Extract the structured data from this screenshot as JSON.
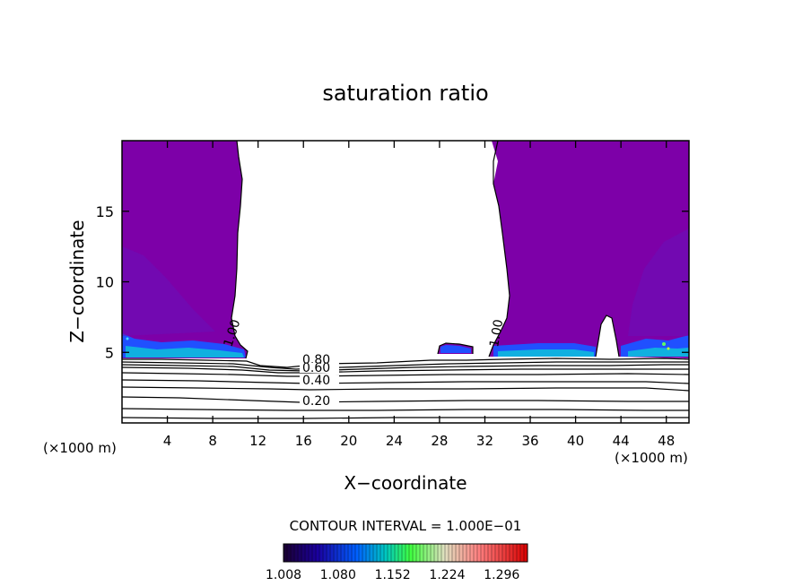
{
  "chart_data": {
    "type": "contour",
    "title": "saturation ratio",
    "xlabel": "X−coordinate",
    "ylabel": "Z−coordinate",
    "x_unit_left": "(×1000 m)",
    "x_unit_right": "(×1000 m)",
    "xlim": [
      0,
      50
    ],
    "ylim": [
      0,
      20
    ],
    "x_ticks": [
      4,
      8,
      12,
      16,
      20,
      24,
      28,
      32,
      36,
      40,
      44,
      48
    ],
    "y_ticks": [
      5,
      10,
      15
    ],
    "contour_interval_text": "CONTOUR INTERVAL = 1.000E−01",
    "contour_labels": [
      {
        "text": "0.80",
        "x": 17,
        "z": 4.1
      },
      {
        "text": "0.60",
        "x": 17,
        "z": 3.7
      },
      {
        "text": "0.40",
        "x": 17,
        "z": 3.0
      },
      {
        "text": "0.20",
        "x": 17,
        "z": 1.6
      },
      {
        "text": "1.00",
        "x": 9.6,
        "z": 6.4
      },
      {
        "text": "1.00",
        "x": 33.4,
        "z": 6.6
      }
    ],
    "contour_levels_below_cloud": [
      0.2,
      0.3,
      0.4,
      0.5,
      0.6,
      0.7,
      0.8,
      0.9
    ],
    "colorbar": {
      "tick_labels": [
        "1.008",
        "1.080",
        "1.152",
        "1.224",
        "1.296"
      ],
      "range": [
        1.008,
        1.33
      ],
      "colors": [
        "#1a0030",
        "#1a00a0",
        "#0060ff",
        "#00c8c0",
        "#40ff40",
        "#e0e0c0",
        "#ff8080",
        "#d80000"
      ]
    },
    "regions": {
      "saturated_left": {
        "x_range": [
          0,
          10.5
        ],
        "z_range": [
          4.8,
          20
        ],
        "color": "#7d00a8"
      },
      "saturated_right": {
        "x_range": [
          33.5,
          50
        ],
        "z_range": [
          4.8,
          20
        ],
        "color": "#7d00a8"
      },
      "saturated_small": {
        "x_range": [
          28.2,
          30.8
        ],
        "z_range": [
          5.0,
          5.6
        ],
        "color": "#7d00a8"
      }
    }
  }
}
